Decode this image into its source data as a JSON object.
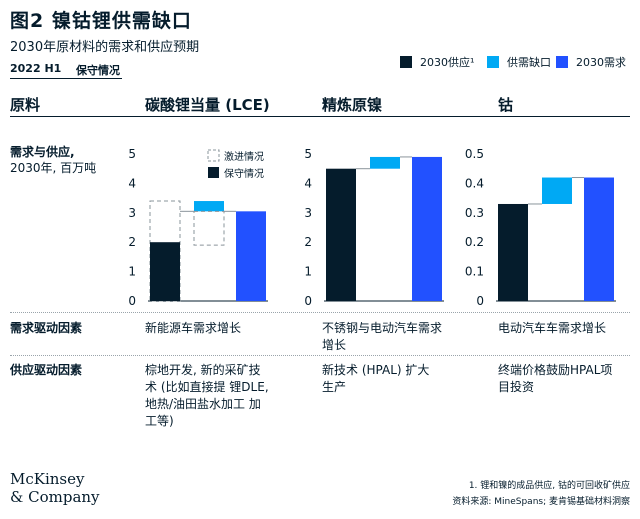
{
  "title": "图2 镍钴锂供需缺口",
  "subtitle": "2030年原材料的需求和供应预期",
  "period": "2022 H1",
  "scenario": "保守情况",
  "legend": [
    {
      "label": "2030供应¹",
      "color": "#051c2c"
    },
    {
      "label": "供需缺口",
      "color": "#00a9f4"
    },
    {
      "label": "2030需求",
      "color": "#2251ff"
    }
  ],
  "columns": {
    "material": "原料",
    "lithium": "碳酸锂当量 (LCE)",
    "nickel": "精炼原镍",
    "cobalt": "钴"
  },
  "rows": {
    "supply_demand": {
      "label": "需求与供应,",
      "sub": "2030年, 百万吨"
    },
    "demand_drivers": {
      "label": "需求驱动因素",
      "lithium": "新能源车需求增长",
      "nickel": "不锈钢与电动汽车需求增长",
      "cobalt": "电动汽车车需求增长"
    },
    "supply_drivers": {
      "label": "供应驱动因素",
      "lithium": "棕地开发, 新的采矿技术 (比如直接提 锂DLE, 地热/油田盐水加工 加工等)",
      "nickel": "新技术 (HPAL) 扩大生产",
      "cobalt": "终端价格鼓励HPAL项目投资"
    }
  },
  "inner_legend": {
    "accelerated": "激进情况",
    "conservative": "保守情况"
  },
  "chart_data": [
    {
      "type": "bar",
      "name": "碳酸锂当量 (LCE)",
      "ylim": [
        0,
        5
      ],
      "yticks": [
        "0",
        "1",
        "2",
        "3",
        "4",
        "5"
      ],
      "supply": 2.0,
      "gap_base": 3.05,
      "gap_top": 3.4,
      "demand": 3.05,
      "accelerated_supply_range": [
        0,
        3.4
      ],
      "accelerated_gap_range": [
        1.9,
        3.05
      ]
    },
    {
      "type": "bar",
      "name": "精炼原镍",
      "ylim": [
        0,
        5
      ],
      "yticks": [
        "0",
        "1",
        "2",
        "3",
        "4",
        "5"
      ],
      "supply": 4.5,
      "gap_base": 4.5,
      "gap_top": 4.9,
      "demand": 4.9
    },
    {
      "type": "bar",
      "name": "钴",
      "ylim": [
        0,
        0.5
      ],
      "yticks": [
        "0",
        "0.1",
        "0.2",
        "0.3",
        "0.4",
        "0.5"
      ],
      "supply": 0.33,
      "gap_base": 0.33,
      "gap_top": 0.42,
      "demand": 0.42
    }
  ],
  "footnote": "1. 锂和镍的成品供应, 钴的可回收矿供应",
  "source": "资料来源: MineSpans; 麦肯锡基础材料洞察",
  "logo": {
    "line1": "McKinsey",
    "line2": "& Company"
  },
  "colors": {
    "supply": "#051c2c",
    "gap": "#00a9f4",
    "demand": "#2251ff"
  }
}
